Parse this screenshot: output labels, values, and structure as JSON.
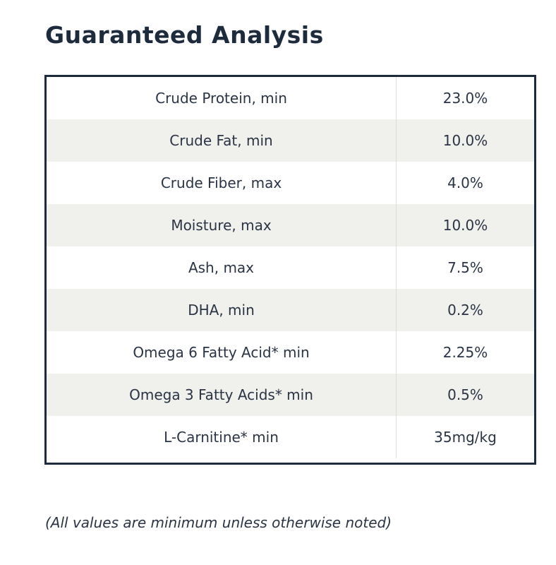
{
  "title": "Guaranteed Analysis",
  "rows": [
    {
      "nutrient": "Crude Protein, min",
      "value": "23.0%"
    },
    {
      "nutrient": "Crude Fat, min",
      "value": "10.0%"
    },
    {
      "nutrient": "Crude Fiber, max",
      "value": "4.0%"
    },
    {
      "nutrient": "Moisture, max",
      "value": "10.0%"
    },
    {
      "nutrient": "Ash, max",
      "value": "7.5%"
    },
    {
      "nutrient": "DHA, min",
      "value": "0.2%"
    },
    {
      "nutrient": "Omega 6 Fatty Acid* min",
      "value": "2.25%"
    },
    {
      "nutrient": "Omega 3 Fatty Acids* min",
      "value": "0.5%"
    },
    {
      "nutrient": "L-Carnitine* min",
      "value": "35mg/kg"
    }
  ],
  "footnote": "(All values are minimum unless otherwise noted)"
}
